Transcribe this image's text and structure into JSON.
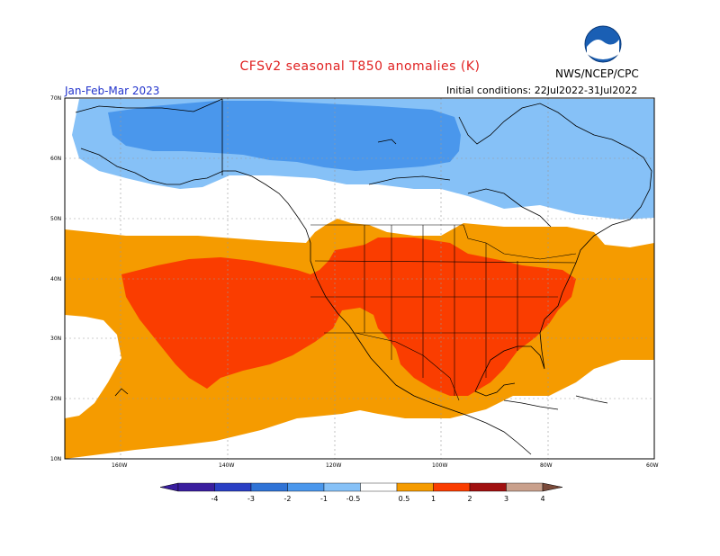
{
  "title": "CFSv2 seasonal T850 anomalies (K)",
  "period": "Jan-Feb-Mar 2023",
  "agency": "NWS/NCEP/CPC",
  "initial_conditions": "Initial conditions: 22Jul2022-31Jul2022",
  "logo_text": "NOAA",
  "lat_labels": [
    "70N",
    "60N",
    "50N",
    "40N",
    "30N",
    "20N",
    "10N"
  ],
  "lon_labels": [
    "160W",
    "140W",
    "120W",
    "100W",
    "80W",
    "60W"
  ],
  "colorbar": {
    "ticks": [
      "-4",
      "-3",
      "-2",
      "-1",
      "-0.5",
      "0.5",
      "1",
      "2",
      "3",
      "4"
    ],
    "colors": [
      "#3a1e9e",
      "#2a3fc4",
      "#2f73d6",
      "#4a97ec",
      "#86c1f7",
      "#ffffff",
      "#f59b00",
      "#fa3d00",
      "#a01010",
      "#c9a08c",
      "#7a4a3a"
    ]
  },
  "colors": {
    "warm_light": "#f59b00",
    "warm": "#fa3d00",
    "cold_light": "#86c1f7",
    "cold": "#4a97ec",
    "title": "#e02020",
    "period": "#2233cc"
  }
}
